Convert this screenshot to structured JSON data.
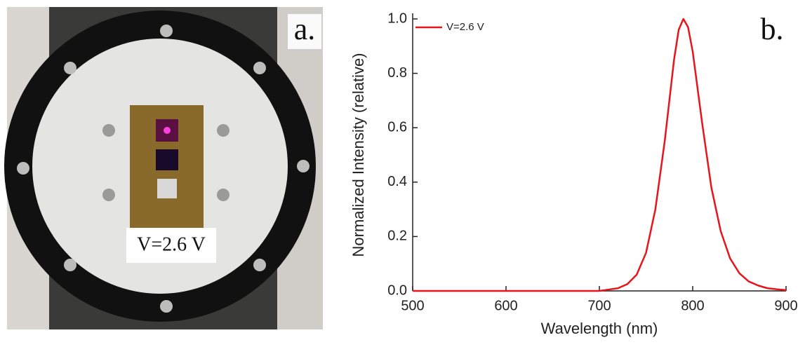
{
  "photo": {
    "panel_label": "a.",
    "caption": "V=2.6 V"
  },
  "chart_data": {
    "type": "line",
    "panel_label": "b.",
    "x_label": "Wavelength (nm)",
    "y_label": "Normalized Intensity (relative)",
    "x": [
      500,
      550,
      600,
      650,
      700,
      710,
      720,
      730,
      740,
      750,
      760,
      770,
      780,
      785,
      790,
      795,
      800,
      810,
      820,
      830,
      840,
      850,
      860,
      870,
      880,
      890,
      900
    ],
    "series": [
      {
        "name": "V=2.6 V",
        "color": "#e8141b",
        "values": [
          0,
          0,
          0,
          0,
          0,
          0.005,
          0.01,
          0.025,
          0.06,
          0.14,
          0.3,
          0.55,
          0.85,
          0.96,
          1.0,
          0.97,
          0.88,
          0.62,
          0.38,
          0.22,
          0.12,
          0.065,
          0.035,
          0.02,
          0.01,
          0.006,
          0.003
        ]
      }
    ],
    "xlim": [
      500,
      900
    ],
    "xticks": [
      500,
      600,
      700,
      800,
      900
    ],
    "ylim": [
      0,
      1
    ],
    "yticks": [
      {
        "value": 0,
        "label": "0.0"
      },
      0.2,
      0.4,
      0.6,
      0.8,
      {
        "value": 1,
        "label": "1.0"
      }
    ],
    "legend": "top-left",
    "grid": false
  }
}
